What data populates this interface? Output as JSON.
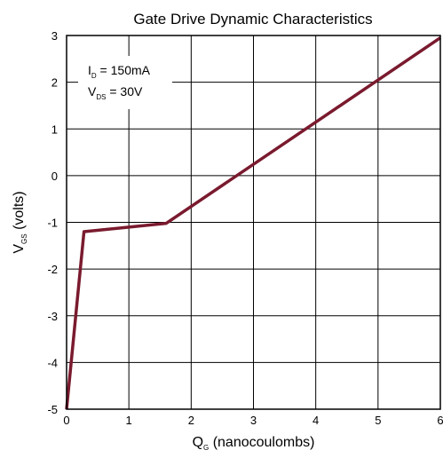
{
  "chart_data": {
    "type": "line",
    "title": "Gate Drive Dynamic Characteristics",
    "xlabel": {
      "main": "Q",
      "sub": "G",
      "rest": " (nanocoulombs)"
    },
    "ylabel": {
      "main": "V",
      "sub": "GS",
      "rest": " (volts)"
    },
    "xlim": [
      0,
      6
    ],
    "ylim": [
      -5,
      3
    ],
    "xticks": [
      "0",
      "1",
      "2",
      "3",
      "4",
      "5",
      "6"
    ],
    "yticks": [
      "-5",
      "-4",
      "-3",
      "-2",
      "-1",
      "0",
      "1",
      "2",
      "3"
    ],
    "grid": true,
    "annotation": [
      {
        "main": "I",
        "sub": "D",
        "rest": " = 150mA"
      },
      {
        "main": "V",
        "sub": "DS",
        "rest": " = 30V"
      }
    ],
    "series": [
      {
        "color": "#7a1a2e",
        "x": [
          0,
          0.28,
          1.6,
          6
        ],
        "y": [
          -5,
          -1.2,
          -1.02,
          2.95
        ]
      }
    ]
  }
}
